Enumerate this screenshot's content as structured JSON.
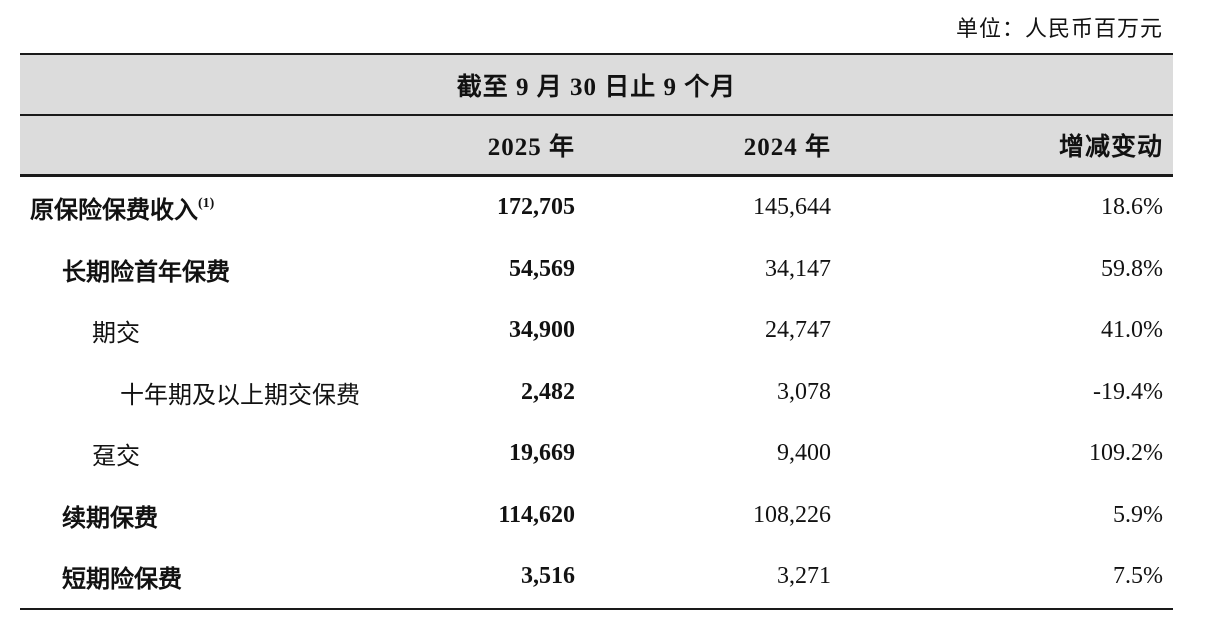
{
  "unit_label": "单位：人民币百万元",
  "table": {
    "period_header": "截至 9 月 30 日止 9 个月",
    "columns": {
      "col_2025": "2025 年",
      "col_2024": "2024 年",
      "col_change": "增减变动"
    },
    "rows": [
      {
        "label": "原保险保费收入",
        "sup": "(1)",
        "v2025": "172,705",
        "v2024": "145,644",
        "change": "18.6%"
      },
      {
        "label": "长期险首年保费",
        "sup": "",
        "v2025": "54,569",
        "v2024": "34,147",
        "change": "59.8%"
      },
      {
        "label": "期交",
        "sup": "",
        "v2025": "34,900",
        "v2024": "24,747",
        "change": "41.0%"
      },
      {
        "label": "十年期及以上期交保费",
        "sup": "",
        "v2025": "2,482",
        "v2024": "3,078",
        "change": "-19.4%"
      },
      {
        "label": "趸交",
        "sup": "",
        "v2025": "19,669",
        "v2024": "9,400",
        "change": "109.2%"
      },
      {
        "label": "续期保费",
        "sup": "",
        "v2025": "114,620",
        "v2024": "108,226",
        "change": "5.9%"
      },
      {
        "label": "短期险保费",
        "sup": "",
        "v2025": "3,516",
        "v2024": "3,271",
        "change": "7.5%"
      }
    ]
  },
  "colors": {
    "band_background": "#dcdcdc",
    "border": "#1a1a1a",
    "text": "#121212",
    "page_background": "#ffffff"
  }
}
